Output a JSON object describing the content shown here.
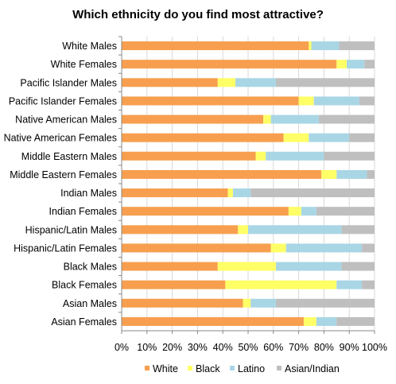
{
  "chart_data": {
    "type": "bar",
    "orientation": "horizontal",
    "stacked": true,
    "title": "Which ethnicity do you find most attractive?",
    "categories": [
      "White Males",
      "White Females",
      "Pacific Islander Males",
      "Pacific Islander Females",
      "Native American Males",
      "Native American Females",
      "Middle Eastern Males",
      "Middle Eastern Females",
      "Indian Males",
      "Indian Females",
      "Hispanic/Latin Males",
      "Hispanic/Latin Females",
      "Black Males",
      "Black Females",
      "Asian Males",
      "Asian Females"
    ],
    "series": [
      {
        "name": "White",
        "color": "#f79f4f",
        "values": [
          74,
          85,
          38,
          70,
          56,
          64,
          53,
          79,
          42,
          66,
          46,
          59,
          38,
          41,
          48,
          72
        ]
      },
      {
        "name": "Black",
        "color": "#ffff66",
        "values": [
          1,
          4,
          7,
          6,
          3,
          10,
          4,
          6,
          2,
          5,
          4,
          6,
          23,
          44,
          3,
          5
        ]
      },
      {
        "name": "Latino",
        "color": "#a9d6e5",
        "values": [
          11,
          7,
          16,
          18,
          19,
          16,
          23,
          12,
          7,
          6,
          37,
          30,
          26,
          10,
          10,
          8
        ]
      },
      {
        "name": "Asian/Indian",
        "color": "#bfbfbf",
        "values": [
          14,
          4,
          39,
          6,
          22,
          10,
          20,
          3,
          49,
          23,
          13,
          5,
          13,
          5,
          39,
          15
        ]
      }
    ],
    "xticks": [
      "0%",
      "10%",
      "20%",
      "30%",
      "40%",
      "50%",
      "60%",
      "70%",
      "80%",
      "90%",
      "100%"
    ],
    "xlim": [
      0,
      100
    ],
    "grid": true,
    "legend_position": "bottom"
  }
}
